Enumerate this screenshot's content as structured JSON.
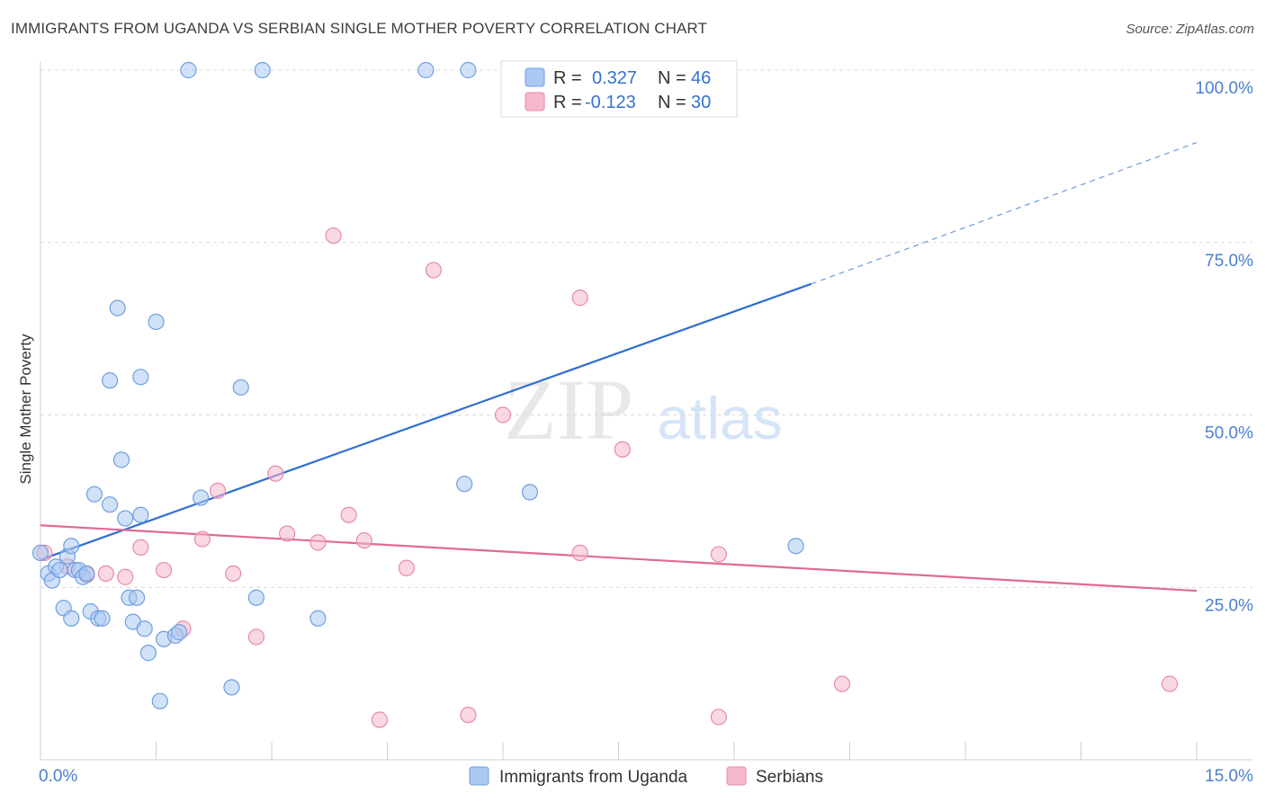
{
  "title": "IMMIGRANTS FROM UGANDA VS SERBIAN SINGLE MOTHER POVERTY CORRELATION CHART",
  "source": "Source: ZipAtlas.com",
  "watermark": {
    "zip": "ZIP",
    "atlas": "atlas"
  },
  "legend": [
    {
      "r_label": "R =",
      "r_value": "0.327",
      "n_label": "N =",
      "n_value": "46"
    },
    {
      "r_label": "R =",
      "r_value": "-0.123",
      "n_label": "N =",
      "n_value": "30"
    }
  ],
  "colors": {
    "uganda_fill": "#a9c8f2",
    "uganda_stroke": "#6f9fe0",
    "uganda_line": "#2f6fd0",
    "serbian_fill": "#f6b8cb",
    "serbian_stroke": "#e88aa8",
    "serbian_line": "#e06a93",
    "tick_text": "#4a7fcf",
    "grid": "#d9d9d9"
  },
  "chart_data": {
    "type": "scatter",
    "title": "IMMIGRANTS FROM UGANDA VS SERBIAN SINGLE MOTHER POVERTY CORRELATION CHART",
    "xlabel": "",
    "ylabel": "Single Mother Poverty",
    "xlim": [
      0,
      15
    ],
    "ylim": [
      0,
      100
    ],
    "x_tick_labels": [
      "0.0%",
      "15.0%"
    ],
    "y_ticks": [
      25,
      50,
      75,
      100
    ],
    "y_tick_labels": [
      "25.0%",
      "50.0%",
      "75.0%",
      "100.0%"
    ],
    "series": [
      {
        "name": "Immigrants from Uganda",
        "r": 0.327,
        "n": 46,
        "points": [
          [
            0.0,
            30.0
          ],
          [
            0.1,
            27.0
          ],
          [
            0.15,
            26.0
          ],
          [
            0.2,
            28.0
          ],
          [
            0.25,
            27.5
          ],
          [
            0.3,
            22.0
          ],
          [
            0.35,
            29.5
          ],
          [
            0.4,
            20.5
          ],
          [
            0.45,
            27.5
          ],
          [
            0.5,
            27.5
          ],
          [
            0.55,
            26.5
          ],
          [
            0.6,
            27.0
          ],
          [
            0.65,
            21.5
          ],
          [
            0.7,
            38.5
          ],
          [
            0.75,
            20.5
          ],
          [
            0.8,
            20.5
          ],
          [
            0.9,
            55.0
          ],
          [
            0.9,
            37.0
          ],
          [
            1.0,
            65.5
          ],
          [
            1.05,
            43.5
          ],
          [
            1.1,
            35.0
          ],
          [
            1.15,
            23.5
          ],
          [
            1.2,
            20.0
          ],
          [
            1.25,
            23.5
          ],
          [
            1.3,
            55.5
          ],
          [
            1.3,
            35.5
          ],
          [
            1.35,
            19.0
          ],
          [
            1.4,
            15.5
          ],
          [
            1.5,
            63.5
          ],
          [
            1.55,
            8.5
          ],
          [
            1.6,
            17.5
          ],
          [
            1.75,
            18.0
          ],
          [
            1.8,
            18.5
          ],
          [
            1.92,
            100.0
          ],
          [
            2.08,
            38.0
          ],
          [
            2.48,
            10.5
          ],
          [
            2.6,
            54.0
          ],
          [
            2.8,
            23.5
          ],
          [
            2.88,
            100.0
          ],
          [
            3.6,
            20.5
          ],
          [
            5.0,
            100.0
          ],
          [
            5.5,
            40.0
          ],
          [
            5.55,
            100.0
          ],
          [
            6.35,
            38.8
          ],
          [
            9.8,
            31.0
          ],
          [
            0.4,
            31.0
          ]
        ]
      },
      {
        "name": "Serbians",
        "r": -0.123,
        "n": 30,
        "points": [
          [
            0.05,
            30.0
          ],
          [
            0.35,
            28.0
          ],
          [
            0.6,
            26.8
          ],
          [
            0.85,
            27.0
          ],
          [
            1.1,
            26.5
          ],
          [
            1.3,
            30.8
          ],
          [
            1.6,
            27.5
          ],
          [
            1.85,
            19.0
          ],
          [
            2.1,
            32.0
          ],
          [
            2.3,
            39.0
          ],
          [
            2.5,
            27.0
          ],
          [
            2.8,
            17.8
          ],
          [
            3.05,
            41.5
          ],
          [
            3.2,
            32.8
          ],
          [
            3.6,
            31.5
          ],
          [
            3.8,
            76.0
          ],
          [
            4.0,
            35.5
          ],
          [
            4.2,
            31.8
          ],
          [
            4.4,
            5.8
          ],
          [
            4.75,
            27.8
          ],
          [
            5.1,
            71.0
          ],
          [
            5.55,
            6.5
          ],
          [
            6.0,
            50.0
          ],
          [
            7.55,
            45.0
          ],
          [
            7.0,
            30.0
          ],
          [
            7.0,
            67.0
          ],
          [
            8.8,
            29.8
          ],
          [
            8.8,
            6.2
          ],
          [
            10.4,
            11.0
          ],
          [
            14.65,
            11.0
          ]
        ]
      }
    ],
    "trend_lines": [
      {
        "name": "Immigrants from Uganda",
        "solid": [
          [
            0,
            29.0
          ],
          [
            10.0,
            69.0
          ]
        ],
        "dashed": [
          [
            10.0,
            69.0
          ],
          [
            15.0,
            89.5
          ]
        ]
      },
      {
        "name": "Serbians",
        "solid": [
          [
            0,
            34.0
          ],
          [
            15.0,
            24.5
          ]
        ]
      }
    ]
  }
}
